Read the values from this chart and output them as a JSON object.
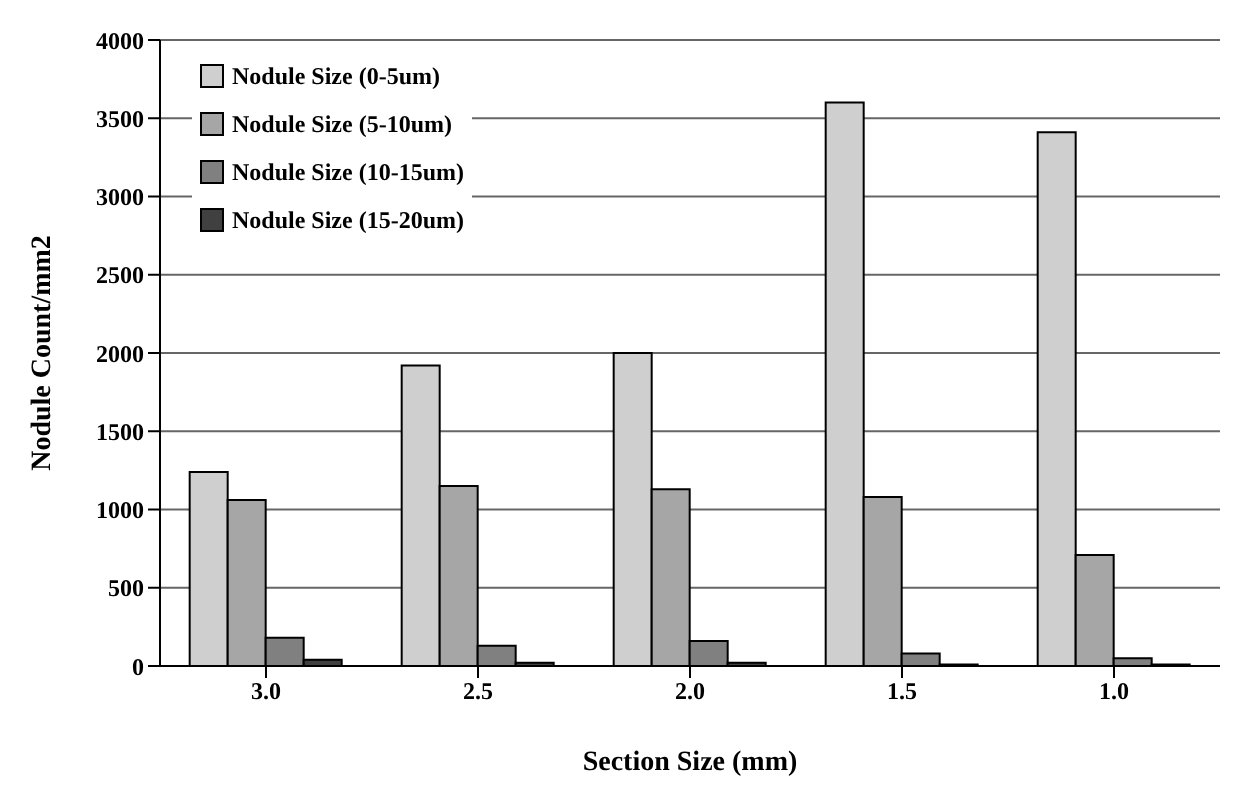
{
  "chart_data": {
    "type": "bar",
    "xlabel": "Section Size (mm)",
    "ylabel": "Nodule Count/mm2",
    "categories": [
      "3.0",
      "2.5",
      "2.0",
      "1.5",
      "1.0"
    ],
    "series": [
      {
        "name": "Nodule Size (0-5um)",
        "color": "#cfcfcf",
        "values": [
          1240,
          1920,
          2000,
          3600,
          3410
        ]
      },
      {
        "name": "Nodule Size (5-10um)",
        "color": "#a6a6a6",
        "values": [
          1060,
          1150,
          1130,
          1080,
          710
        ]
      },
      {
        "name": "Nodule Size (10-15um)",
        "color": "#808080",
        "values": [
          180,
          130,
          160,
          80,
          50
        ]
      },
      {
        "name": "Nodule Size (15-20um)",
        "color": "#404040",
        "values": [
          40,
          20,
          20,
          10,
          10
        ]
      }
    ],
    "ylim": [
      0,
      4000
    ],
    "yticks": [
      0,
      500,
      1000,
      1500,
      2000,
      2500,
      3000,
      3500,
      4000
    ],
    "grid": "y",
    "legend": "top left"
  }
}
